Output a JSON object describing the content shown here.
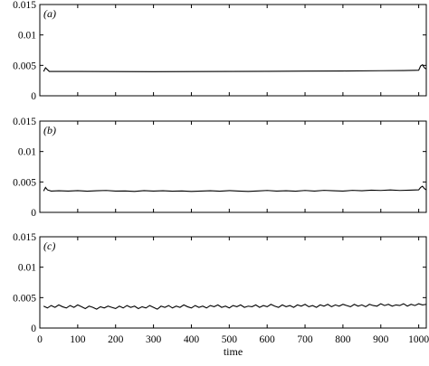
{
  "chart_data": [
    {
      "type": "line",
      "panel_label": "(a)",
      "title": "",
      "xlabel": "",
      "ylabel": "",
      "xlim": [
        0,
        1020
      ],
      "ylim": [
        0,
        0.015
      ],
      "xticks": [],
      "yticks": [
        0,
        0.005,
        0.01,
        0.015
      ],
      "ytick_labels": [
        "0",
        "0.005",
        "0.01",
        "0.015"
      ],
      "grid": false,
      "series": [
        {
          "x": [
            10,
            15,
            20,
            25,
            30,
            40,
            60,
            100,
            200,
            300,
            400,
            500,
            600,
            700,
            800,
            900,
            960,
            990,
            1000,
            1005,
            1010,
            1015,
            1020
          ],
          "y": [
            0.004,
            0.0046,
            0.0043,
            0.004,
            0.004,
            0.004,
            0.004,
            0.004,
            0.00398,
            0.00397,
            0.00398,
            0.004,
            0.00402,
            0.00405,
            0.00408,
            0.00412,
            0.00415,
            0.00418,
            0.0042,
            0.0049,
            0.0051,
            0.0046,
            0.0044
          ]
        }
      ]
    },
    {
      "type": "line",
      "panel_label": "(b)",
      "title": "",
      "xlabel": "",
      "ylabel": "",
      "xlim": [
        0,
        1020
      ],
      "ylim": [
        0,
        0.015
      ],
      "xticks": [],
      "yticks": [
        0,
        0.005,
        0.01,
        0.015
      ],
      "ytick_labels": [
        "0",
        "0.005",
        "0.01",
        "0.015"
      ],
      "grid": false,
      "series": [
        {
          "x": [
            10,
            15,
            20,
            30,
            50,
            75,
            100,
            125,
            150,
            175,
            200,
            225,
            250,
            275,
            300,
            325,
            350,
            375,
            400,
            425,
            450,
            475,
            500,
            525,
            550,
            575,
            600,
            625,
            650,
            675,
            700,
            725,
            750,
            775,
            800,
            825,
            850,
            875,
            900,
            925,
            950,
            975,
            1000,
            1005,
            1010,
            1015,
            1020
          ],
          "y": [
            0.0035,
            0.0041,
            0.0037,
            0.0035,
            0.00355,
            0.0035,
            0.00358,
            0.00348,
            0.00355,
            0.0036,
            0.0035,
            0.00352,
            0.00345,
            0.00358,
            0.0035,
            0.00355,
            0.00348,
            0.00352,
            0.00345,
            0.0035,
            0.00355,
            0.00348,
            0.00358,
            0.0035,
            0.00345,
            0.00352,
            0.0036,
            0.0035,
            0.00355,
            0.00348,
            0.0036,
            0.0035,
            0.00362,
            0.00355,
            0.0035,
            0.00362,
            0.00355,
            0.00365,
            0.0036,
            0.00368,
            0.0036,
            0.00365,
            0.0037,
            0.0041,
            0.0043,
            0.0039,
            0.0037
          ]
        }
      ]
    },
    {
      "type": "line",
      "panel_label": "(c)",
      "title": "",
      "xlabel": "time",
      "ylabel": "",
      "xlim": [
        0,
        1020
      ],
      "ylim": [
        0,
        0.015
      ],
      "xticks": [
        0,
        100,
        200,
        300,
        400,
        500,
        600,
        700,
        800,
        900,
        1000
      ],
      "xtick_labels": [
        "0",
        "100",
        "200",
        "300",
        "400",
        "500",
        "600",
        "700",
        "800",
        "900",
        "1000"
      ],
      "yticks": [
        0,
        0.005,
        0.01,
        0.015
      ],
      "ytick_labels": [
        "0",
        "0.005",
        "0.01",
        "0.015"
      ],
      "grid": false,
      "series": [
        {
          "x": [
            10,
            20,
            30,
            40,
            50,
            60,
            70,
            80,
            90,
            100,
            110,
            120,
            130,
            140,
            150,
            160,
            170,
            180,
            190,
            200,
            210,
            220,
            230,
            240,
            250,
            260,
            270,
            280,
            290,
            300,
            310,
            320,
            330,
            340,
            350,
            360,
            370,
            380,
            390,
            400,
            410,
            420,
            430,
            440,
            450,
            460,
            470,
            480,
            490,
            500,
            510,
            520,
            530,
            540,
            550,
            560,
            570,
            580,
            590,
            600,
            610,
            620,
            630,
            640,
            650,
            660,
            670,
            680,
            690,
            700,
            710,
            720,
            730,
            740,
            750,
            760,
            770,
            780,
            790,
            800,
            810,
            820,
            830,
            840,
            850,
            860,
            870,
            880,
            890,
            900,
            910,
            920,
            930,
            940,
            950,
            960,
            970,
            980,
            990,
            1000,
            1010,
            1020
          ],
          "y": [
            0.0036,
            0.0033,
            0.0037,
            0.0034,
            0.0038,
            0.0035,
            0.0033,
            0.0037,
            0.0034,
            0.0038,
            0.0035,
            0.0032,
            0.0036,
            0.0034,
            0.0031,
            0.0035,
            0.0033,
            0.0036,
            0.0034,
            0.0032,
            0.0036,
            0.0033,
            0.0037,
            0.0034,
            0.0036,
            0.0032,
            0.0035,
            0.0033,
            0.0037,
            0.0034,
            0.0031,
            0.0036,
            0.0034,
            0.0037,
            0.0033,
            0.0036,
            0.0034,
            0.0038,
            0.0035,
            0.0033,
            0.0037,
            0.0034,
            0.0036,
            0.0033,
            0.0037,
            0.0035,
            0.0038,
            0.0034,
            0.0036,
            0.0033,
            0.0037,
            0.0035,
            0.0038,
            0.0034,
            0.0036,
            0.0035,
            0.0038,
            0.0034,
            0.0037,
            0.0035,
            0.0039,
            0.0036,
            0.0034,
            0.0038,
            0.0035,
            0.0037,
            0.0034,
            0.0038,
            0.0036,
            0.0039,
            0.0035,
            0.0037,
            0.0034,
            0.0038,
            0.0036,
            0.0039,
            0.0035,
            0.0038,
            0.0036,
            0.0039,
            0.0037,
            0.0035,
            0.0039,
            0.0036,
            0.0038,
            0.0035,
            0.0039,
            0.0037,
            0.0036,
            0.004,
            0.0037,
            0.0039,
            0.0036,
            0.0038,
            0.0037,
            0.004,
            0.0036,
            0.0039,
            0.0037,
            0.004,
            0.0038,
            0.0039
          ]
        }
      ]
    }
  ]
}
